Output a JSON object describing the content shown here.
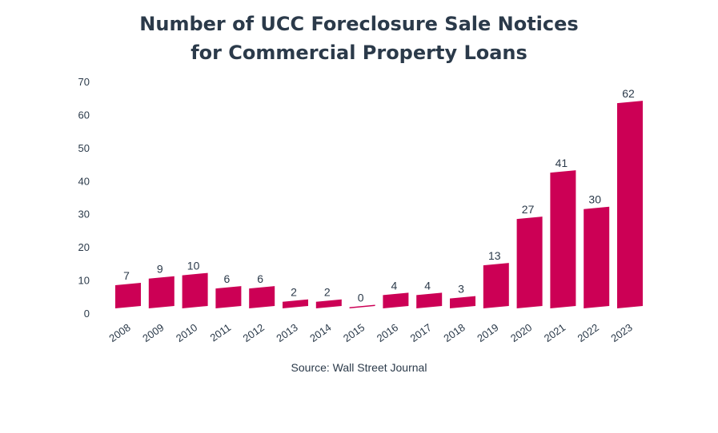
{
  "chart_data": {
    "type": "bar",
    "title_line1": "Number of UCC Foreclosure Sale Notices",
    "title_line2": "for Commercial Property Loans",
    "source": "Source: Wall Street Journal",
    "categories": [
      "2008",
      "2009",
      "2010",
      "2011",
      "2012",
      "2013",
      "2014",
      "2015",
      "2016",
      "2017",
      "2018",
      "2019",
      "2020",
      "2021",
      "2022",
      "2023"
    ],
    "values": [
      7,
      9,
      10,
      6,
      6,
      2,
      2,
      0,
      4,
      4,
      3,
      13,
      27,
      41,
      30,
      62
    ],
    "yticks": [
      0,
      10,
      20,
      30,
      40,
      50,
      60,
      70
    ],
    "ylim": [
      0,
      70
    ],
    "bar_color": "#cc0055",
    "grid": false,
    "legend": "none"
  }
}
